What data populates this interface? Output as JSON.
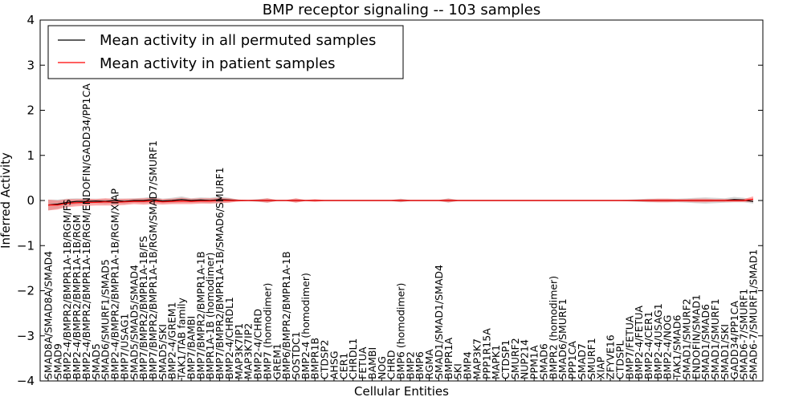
{
  "chart_data": {
    "type": "line",
    "title": "BMP receptor signaling -- 103 samples",
    "xlabel": "Cellular Entities",
    "ylabel": "Inferred Activity",
    "ylim": [
      -4,
      4
    ],
    "yticks": [
      -4,
      -3,
      -2,
      -1,
      0,
      1,
      2,
      3,
      4
    ],
    "grid": false,
    "legend_position": "top-left",
    "categories": [
      "SMAD8A/SMAD8A/SMAD4",
      "SMAD9",
      "BMP2-4/BMPR2/BMPR1A-1B/RGM/FS",
      "BMP2-4/BMPR2/BMPR1A-1B/RGM",
      "BMP2-4/BMPR2/BMPR1A-1B/RGM/ENDOFIN/GADD34/PP1CA",
      "SMAD5",
      "SMAD6/SMURF1/SMAD5",
      "BMP2-4/BMPR2/BMPR1A-1B/RGM/XIAP",
      "BMP7/USAG1",
      "SMAD5/SMAD5/SMAD4",
      "BMP7/BMPR2/BMPR1A-1B/FS",
      "BMP7/BMPR2/BMPR1A-1B/RGM/SMAD7/SMURF1",
      "SMAD5/SKI",
      "BMP2-4/GREM1",
      "TAK1/TAB family",
      "BMP7/BAMBI",
      "BMP7/BMPR2/BMPR1A-1B",
      "BMPR1A-1B (homodimer)",
      "BMP7/BMPR2/BMPR1A-1B/SMAD6/SMURF1",
      "BMP2-4/CHRDL1",
      "MAP3K7IP1",
      "MAP3K7IP2",
      "BMP2-4/CHRD",
      "BMP7 (homodimer)",
      "GREM1",
      "BMP6/BMPR2/BMPR1A-1B",
      "SOSTDC1",
      "BMP2-4 (homodimer)",
      "BMPR1B",
      "CTDSP2",
      "AHSG",
      "CER1",
      "CHRDL1",
      "FETUA",
      "BAMBI",
      "NOG",
      "CHRD",
      "BMP6 (homodimer)",
      "BMP2",
      "BMP6",
      "RGMA",
      "SMAD1/SMAD1/SMAD4",
      "BMPR1A",
      "SKI",
      "BMP4",
      "MAP3K7",
      "PPP1R15A",
      "MAPK1",
      "CTDSP1",
      "SMURF2",
      "NUP214",
      "PPM1A",
      "SMAD6",
      "BMPR2 (homodimer)",
      "SMAD6/SMURF1",
      "PPP1CA",
      "SMAD7",
      "SMURF1",
      "XIAP",
      "ZFYVE16",
      "CTDSPL",
      "BMP7/FETUA",
      "BMP2-4/FETUA",
      "BMP2-4/CER1",
      "BMP2-4/USAG1",
      "BMP2-4/NOG",
      "TAK1/SMAD6",
      "SMAD1/SMURF2",
      "ENDOFIN/SMAD1",
      "SMAD1/SMAD6",
      "SMAD1/SMURF1",
      "SMAD1/SKI",
      "GADD34/PP1CA",
      "SMAD6-7/SMURF1",
      "SMAD6-7/SMURF1/SMAD1"
    ],
    "series": [
      {
        "name": "Mean activity in all permuted samples",
        "color": "#000000",
        "values": [
          -0.1,
          -0.08,
          -0.04,
          -0.02,
          -0.02,
          -0.01,
          -0.02,
          0,
          -0.02,
          0,
          0,
          0.02,
          -0.01,
          0,
          0.02,
          0,
          0.01,
          0,
          0.02,
          0.01,
          0,
          0,
          0,
          0,
          0,
          0,
          0,
          0,
          0,
          0,
          0,
          0,
          0,
          0,
          0,
          0,
          0,
          0,
          0,
          0,
          0,
          0,
          0,
          0,
          0,
          0,
          0,
          0,
          0,
          0,
          0,
          0,
          0,
          0,
          0,
          0,
          0,
          0,
          0,
          0,
          0,
          0,
          0,
          0,
          0,
          0,
          0,
          0,
          0,
          0,
          0,
          0,
          0.02,
          0.01,
          -0.02
        ],
        "band": [
          0.12,
          0.1,
          0.08,
          0.07,
          0.06,
          0.05,
          0.06,
          0.05,
          0.06,
          0.05,
          0.06,
          0.07,
          0.05,
          0.06,
          0.07,
          0.05,
          0.06,
          0.06,
          0.07,
          0.05,
          0.02,
          0.01,
          0.03,
          0.05,
          0.01,
          0.01,
          0.04,
          0.01,
          0.01,
          0.01,
          0.01,
          0.01,
          0.01,
          0.01,
          0.01,
          0.01,
          0.01,
          0.04,
          0.01,
          0.01,
          0.01,
          0.01,
          0.05,
          0.01,
          0.01,
          0.01,
          0.01,
          0.01,
          0.01,
          0.01,
          0.01,
          0.01,
          0.01,
          0.01,
          0.01,
          0.01,
          0.01,
          0.01,
          0.01,
          0.01,
          0.01,
          0.02,
          0.03,
          0.04,
          0.04,
          0.04,
          0.04,
          0.05,
          0.06,
          0.07,
          0.06,
          0.05,
          0.06,
          0.05,
          0.05
        ]
      },
      {
        "name": "Mean activity in patient samples",
        "color": "#ff0000",
        "values": [
          -0.1,
          -0.1,
          -0.06,
          -0.05,
          -0.04,
          -0.04,
          -0.03,
          -0.04,
          -0.03,
          -0.02,
          -0.02,
          -0.01,
          -0.03,
          -0.02,
          -0.01,
          -0.02,
          -0.01,
          -0.01,
          0,
          0,
          0,
          0,
          0,
          0,
          0,
          0,
          0,
          0,
          0,
          0,
          0,
          0,
          0,
          0,
          0,
          0,
          0,
          0,
          0,
          0,
          0,
          0,
          0,
          0,
          0,
          0,
          0,
          0,
          0,
          0,
          0,
          0,
          0,
          0,
          0,
          0,
          0,
          0,
          0,
          0,
          0,
          0,
          0,
          0,
          0,
          0,
          0,
          0,
          0,
          0,
          0,
          0,
          0,
          0,
          0.03
        ],
        "band": [
          0.12,
          0.1,
          0.09,
          0.08,
          0.08,
          0.07,
          0.08,
          0.07,
          0.07,
          0.06,
          0.07,
          0.07,
          0.06,
          0.06,
          0.07,
          0.06,
          0.06,
          0.06,
          0.06,
          0.05,
          0.02,
          0.01,
          0.02,
          0.05,
          0.01,
          0.01,
          0.05,
          0.01,
          0.03,
          0.01,
          0.01,
          0.01,
          0.01,
          0.01,
          0.01,
          0.01,
          0.01,
          0.03,
          0.01,
          0.01,
          0.01,
          0.01,
          0.04,
          0.01,
          0.01,
          0.01,
          0.01,
          0.01,
          0.01,
          0.01,
          0.01,
          0.01,
          0.01,
          0.01,
          0.01,
          0.01,
          0.01,
          0.01,
          0.01,
          0.01,
          0.01,
          0.01,
          0.02,
          0.03,
          0.04,
          0.04,
          0.03,
          0.03,
          0.04,
          0.04,
          0.03,
          0.03,
          0.03,
          0.03,
          0.06
        ]
      }
    ],
    "band_colors": [
      "#b5b5b5",
      "#ff5a5a"
    ]
  }
}
